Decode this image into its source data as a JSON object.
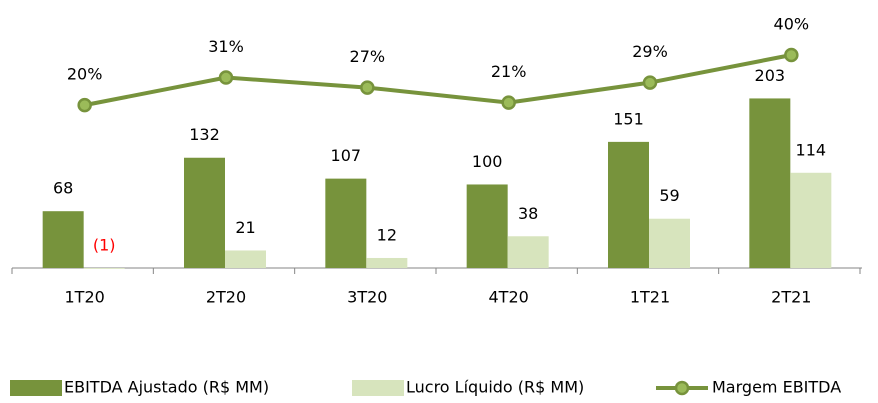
{
  "chart_data": {
    "type": "bar_line",
    "categories": [
      "1T20",
      "2T20",
      "3T20",
      "4T20",
      "1T21",
      "2T21"
    ],
    "series": [
      {
        "name": "EBITDA Ajustado (R$ MM)",
        "type": "bar",
        "color": "#77933c",
        "values": [
          68,
          132,
          107,
          100,
          151,
          203
        ]
      },
      {
        "name": "Lucro Líquido (R$ MM)",
        "type": "bar",
        "color": "#d7e4bd",
        "values": [
          -1,
          21,
          12,
          38,
          59,
          114
        ],
        "value_labels": [
          "(1)",
          "21",
          "12",
          "38",
          "59",
          "114"
        ],
        "negative_label_color": "#ff0000"
      },
      {
        "name": "Margem EBITDA",
        "type": "line",
        "axis": "y2",
        "color": "#77933c",
        "marker_fill": "#9bbb59",
        "values": [
          20,
          31,
          27,
          21,
          29,
          40
        ],
        "value_labels": [
          "20%",
          "31%",
          "27%",
          "21%",
          "29%",
          "40%"
        ]
      }
    ],
    "ylim": [
      0,
      255
    ],
    "y2lim": [
      -45,
      40
    ],
    "legend": "bottom"
  }
}
